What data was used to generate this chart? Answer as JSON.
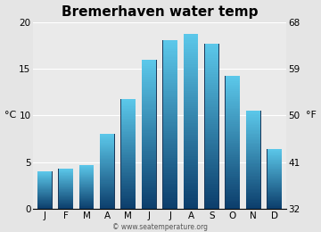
{
  "title": "Bremerhaven water temp",
  "months": [
    "J",
    "F",
    "M",
    "A",
    "M",
    "J",
    "J",
    "A",
    "S",
    "O",
    "N",
    "D"
  ],
  "values_c": [
    4.0,
    4.3,
    4.7,
    8.0,
    11.7,
    15.9,
    18.0,
    18.7,
    17.7,
    14.2,
    10.5,
    6.4
  ],
  "ylim_c": [
    0,
    20
  ],
  "yticks_c": [
    0,
    5,
    10,
    15,
    20
  ],
  "ylim_f": [
    32,
    68
  ],
  "yticks_f": [
    32,
    41,
    50,
    59,
    68
  ],
  "ylabel_left": "°C",
  "ylabel_right": "°F",
  "bar_color_top": "#5bc8ea",
  "bar_color_bottom": "#0b3d6b",
  "bar_edge_color": "#1a3a5c",
  "bg_color": "#e5e5e5",
  "plot_bg_color": "#eaeaea",
  "watermark": "© www.seatemperature.org",
  "title_fontsize": 11,
  "tick_fontsize": 7.5,
  "label_fontsize": 8,
  "watermark_fontsize": 5.5
}
